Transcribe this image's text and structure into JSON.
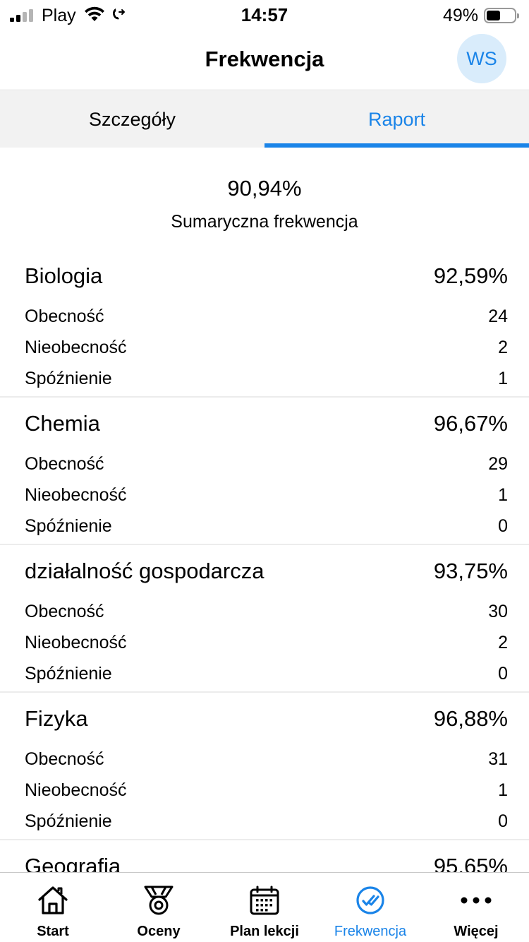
{
  "status_bar": {
    "carrier": "Play",
    "time": "14:57",
    "battery": "49%",
    "battery_level": 0.49
  },
  "header": {
    "title": "Frekwencja",
    "avatar_initials": "WS"
  },
  "tabs": [
    {
      "label": "Szczegóły",
      "active": false
    },
    {
      "label": "Raport",
      "active": true
    }
  ],
  "summary": {
    "value": "90,94%",
    "label": "Sumaryczna frekwencja"
  },
  "subjects": [
    {
      "name": "Biologia",
      "percent": "92,59%",
      "rows": [
        {
          "label": "Obecność",
          "value": "24"
        },
        {
          "label": "Nieobecność",
          "value": "2"
        },
        {
          "label": "Spóźnienie",
          "value": "1"
        }
      ]
    },
    {
      "name": "Chemia",
      "percent": "96,67%",
      "rows": [
        {
          "label": "Obecność",
          "value": "29"
        },
        {
          "label": "Nieobecność",
          "value": "1"
        },
        {
          "label": "Spóźnienie",
          "value": "0"
        }
      ]
    },
    {
      "name": "działalność gospodarcza",
      "percent": "93,75%",
      "rows": [
        {
          "label": "Obecność",
          "value": "30"
        },
        {
          "label": "Nieobecność",
          "value": "2"
        },
        {
          "label": "Spóźnienie",
          "value": "0"
        }
      ]
    },
    {
      "name": "Fizyka",
      "percent": "96,88%",
      "rows": [
        {
          "label": "Obecność",
          "value": "31"
        },
        {
          "label": "Nieobecność",
          "value": "1"
        },
        {
          "label": "Spóźnienie",
          "value": "0"
        }
      ]
    },
    {
      "name": "Geografia",
      "percent": "95,65%",
      "rows": []
    }
  ],
  "bottom_nav": [
    {
      "label": "Start",
      "icon": "home-icon",
      "active": false
    },
    {
      "label": "Oceny",
      "icon": "medal-icon",
      "active": false
    },
    {
      "label": "Plan lekcji",
      "icon": "calendar-icon",
      "active": false
    },
    {
      "label": "Frekwencja",
      "icon": "check-circle-icon",
      "active": true
    },
    {
      "label": "Więcej",
      "icon": "more-icon",
      "active": false
    }
  ],
  "colors": {
    "accent": "#1a84e8",
    "tab_background": "#f2f2f2",
    "avatar_background": "#d9ecfb"
  }
}
